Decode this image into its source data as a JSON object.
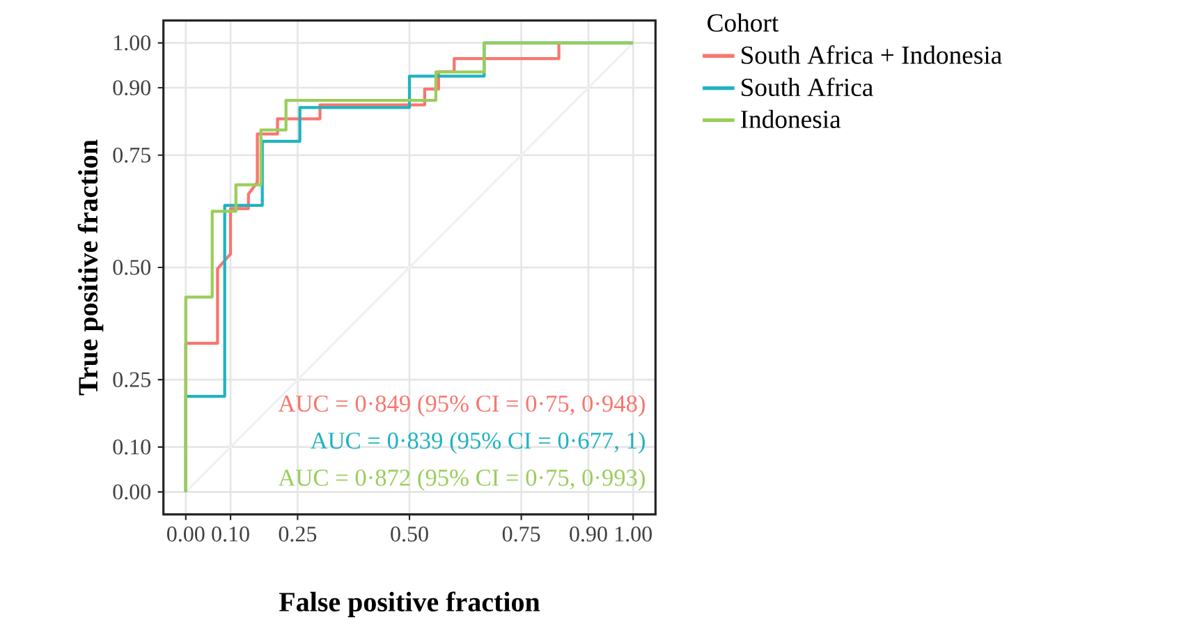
{
  "chart_data": {
    "type": "line",
    "xlabel": "False positive fraction",
    "ylabel": "True positive fraction",
    "legend_title": "Cohort",
    "legend": "right",
    "grid": true,
    "xlim": [
      0,
      1
    ],
    "ylim": [
      0,
      1
    ],
    "xticks": [
      {
        "value": 0,
        "label": "0.00"
      },
      {
        "value": 0.1,
        "label": "0.10"
      },
      {
        "value": 0.25,
        "label": "0.25"
      },
      {
        "value": 0.5,
        "label": "0.50"
      },
      {
        "value": 0.75,
        "label": "0.75"
      },
      {
        "value": 0.9,
        "label": "0.90"
      },
      {
        "value": 1,
        "label": "1.00"
      }
    ],
    "yticks": [
      {
        "value": 0,
        "label": "0.00"
      },
      {
        "value": 0.1,
        "label": "0.10"
      },
      {
        "value": 0.25,
        "label": "0.25"
      },
      {
        "value": 0.5,
        "label": "0.50"
      },
      {
        "value": 0.75,
        "label": "0.75"
      },
      {
        "value": 0.9,
        "label": "0.90"
      },
      {
        "value": 1,
        "label": "1.00"
      }
    ],
    "series": [
      {
        "color": "#f0f0f0",
        "x": [
          0,
          1
        ],
        "values": [
          0,
          1
        ]
      },
      {
        "name": "South Africa + Indonesia",
        "color": "#f8766d",
        "x": [
          0,
          0,
          0.071,
          0.071,
          0.1,
          0.1,
          0.14,
          0.14,
          0.16,
          0.16,
          0.205,
          0.205,
          0.3,
          0.3,
          0.534,
          0.534,
          0.565,
          0.565,
          0.6,
          0.6,
          0.834,
          0.834
        ],
        "values": [
          0,
          0.331,
          0.331,
          0.497,
          0.53,
          0.631,
          0.631,
          0.663,
          0.69,
          0.797,
          0.797,
          0.831,
          0.831,
          0.862,
          0.862,
          0.897,
          0.897,
          0.936,
          0.936,
          0.965,
          0.965,
          1
        ]
      },
      {
        "name": "South Africa",
        "color": "#1fb3bf",
        "x": [
          0,
          0,
          0.087,
          0.087,
          0.171,
          0.171,
          0.255,
          0.255,
          0.5,
          0.5,
          0.667,
          0.667,
          1
        ],
        "values": [
          0,
          0.213,
          0.213,
          0.638,
          0.638,
          0.781,
          0.781,
          0.856,
          0.856,
          0.926,
          0.926,
          1,
          1
        ]
      },
      {
        "name": "Indonesia",
        "color": "#9acd5b",
        "x": [
          0,
          0,
          0.059,
          0.059,
          0.112,
          0.112,
          0.168,
          0.168,
          0.224,
          0.224,
          0.559,
          0.559,
          0.667,
          0.667,
          1
        ],
        "values": [
          0,
          0.434,
          0.434,
          0.625,
          0.625,
          0.684,
          0.684,
          0.806,
          0.806,
          0.872,
          0.872,
          0.935,
          0.935,
          1,
          1
        ]
      }
    ],
    "annotations": [
      "AUC = 0·849 (95% CI = 0·75, 0·948)",
      "AUC = 0·839 (95% CI = 0·677, 1)",
      "AUC = 0·872 (95% CI = 0·75, 0·993)"
    ]
  }
}
